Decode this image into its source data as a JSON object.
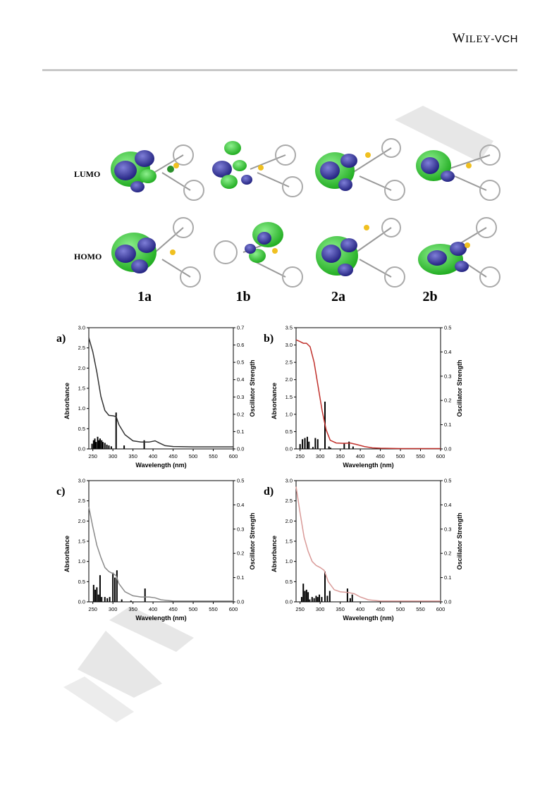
{
  "header": {
    "publisher_first": "W",
    "publisher_rest": "ILEY",
    "publisher_suffix": "-VCH"
  },
  "orbitals": {
    "rows": [
      "LUMO",
      "HOMO"
    ],
    "compounds": [
      "1a",
      "1b",
      "2a",
      "2b"
    ]
  },
  "spectra": [
    {
      "panel_label": "a)",
      "xlabel": "Wavelength (nm)",
      "ylabel_left": "Absorbance",
      "ylabel_right": "Oscillator Strength",
      "xlim": [
        240,
        600
      ],
      "xticks": [
        250,
        300,
        350,
        400,
        450,
        500,
        550,
        600
      ],
      "ylim_left": [
        0,
        3.0
      ],
      "yticks_left": [
        0.0,
        0.5,
        1.0,
        1.5,
        2.0,
        2.5,
        3.0
      ],
      "ylim_right": [
        0,
        0.7
      ],
      "yticks_right": [
        0.0,
        0.1,
        0.2,
        0.3,
        0.4,
        0.5,
        0.6,
        0.7
      ],
      "line_color": "#333333",
      "curve": [
        [
          240,
          2.75
        ],
        [
          250,
          2.4
        ],
        [
          260,
          1.9
        ],
        [
          270,
          1.3
        ],
        [
          280,
          0.95
        ],
        [
          290,
          0.83
        ],
        [
          300,
          0.82
        ],
        [
          308,
          0.8
        ],
        [
          315,
          0.6
        ],
        [
          330,
          0.35
        ],
        [
          350,
          0.2
        ],
        [
          370,
          0.17
        ],
        [
          390,
          0.17
        ],
        [
          405,
          0.2
        ],
        [
          415,
          0.15
        ],
        [
          430,
          0.08
        ],
        [
          450,
          0.06
        ],
        [
          500,
          0.05
        ],
        [
          550,
          0.05
        ],
        [
          600,
          0.05
        ]
      ],
      "sticks": [
        [
          248,
          0.03
        ],
        [
          252,
          0.05
        ],
        [
          255,
          0.06
        ],
        [
          258,
          0.04
        ],
        [
          262,
          0.07
        ],
        [
          265,
          0.05
        ],
        [
          268,
          0.06
        ],
        [
          272,
          0.05
        ],
        [
          275,
          0.04
        ],
        [
          280,
          0.035
        ],
        [
          285,
          0.025
        ],
        [
          290,
          0.02
        ],
        [
          296,
          0.015
        ],
        [
          308,
          0.21
        ],
        [
          328,
          0.02
        ],
        [
          378,
          0.05
        ]
      ]
    },
    {
      "panel_label": "b)",
      "xlabel": "Wavelength (nm)",
      "ylabel_left": "Absorbance",
      "ylabel_right": "Oscillator Strength",
      "xlim": [
        240,
        600
      ],
      "xticks": [
        250,
        300,
        350,
        400,
        450,
        500,
        550,
        600
      ],
      "ylim_left": [
        0,
        3.5
      ],
      "yticks_left": [
        0.0,
        0.5,
        1.0,
        1.5,
        2.0,
        2.5,
        3.0,
        3.5
      ],
      "ylim_right": [
        0,
        0.5
      ],
      "yticks_right": [
        0.0,
        0.1,
        0.2,
        0.3,
        0.4,
        0.5
      ],
      "line_color": "#c0302b",
      "curve": [
        [
          240,
          3.15
        ],
        [
          250,
          3.1
        ],
        [
          258,
          3.05
        ],
        [
          266,
          3.05
        ],
        [
          275,
          2.95
        ],
        [
          285,
          2.5
        ],
        [
          295,
          1.8
        ],
        [
          305,
          1.1
        ],
        [
          315,
          0.55
        ],
        [
          325,
          0.25
        ],
        [
          340,
          0.17
        ],
        [
          360,
          0.16
        ],
        [
          375,
          0.17
        ],
        [
          390,
          0.13
        ],
        [
          410,
          0.07
        ],
        [
          430,
          0.03
        ],
        [
          450,
          0.02
        ],
        [
          500,
          0.01
        ],
        [
          600,
          0.01
        ]
      ],
      "sticks": [
        [
          250,
          0.02
        ],
        [
          256,
          0.04
        ],
        [
          262,
          0.045
        ],
        [
          268,
          0.05
        ],
        [
          272,
          0.03
        ],
        [
          282,
          0.008
        ],
        [
          288,
          0.045
        ],
        [
          294,
          0.04
        ],
        [
          312,
          0.195
        ],
        [
          322,
          0.01
        ],
        [
          326,
          0.005
        ],
        [
          360,
          0.025
        ],
        [
          372,
          0.03
        ],
        [
          382,
          0.01
        ]
      ]
    },
    {
      "panel_label": "c)",
      "xlabel": "Wavelength (nm)",
      "ylabel_left": "Absorbance",
      "ylabel_right": "Oscillator Strength",
      "xlim": [
        240,
        600
      ],
      "xticks": [
        250,
        300,
        350,
        400,
        450,
        500,
        550,
        600
      ],
      "ylim_left": [
        0,
        3.0
      ],
      "yticks_left": [
        0.0,
        0.5,
        1.0,
        1.5,
        2.0,
        2.5,
        3.0
      ],
      "ylim_right": [
        0,
        0.5
      ],
      "yticks_right": [
        0.0,
        0.1,
        0.2,
        0.3,
        0.4,
        0.5
      ],
      "line_color": "#8a8a8a",
      "curve": [
        [
          240,
          2.35
        ],
        [
          250,
          1.85
        ],
        [
          260,
          1.4
        ],
        [
          270,
          1.1
        ],
        [
          280,
          0.85
        ],
        [
          290,
          0.75
        ],
        [
          300,
          0.7
        ],
        [
          308,
          0.65
        ],
        [
          315,
          0.45
        ],
        [
          330,
          0.25
        ],
        [
          350,
          0.15
        ],
        [
          370,
          0.12
        ],
        [
          390,
          0.12
        ],
        [
          405,
          0.1
        ],
        [
          420,
          0.05
        ],
        [
          450,
          0.02
        ],
        [
          600,
          0.02
        ]
      ],
      "sticks": [
        [
          252,
          0.07
        ],
        [
          256,
          0.05
        ],
        [
          260,
          0.06
        ],
        [
          264,
          0.03
        ],
        [
          268,
          0.11
        ],
        [
          272,
          0.02
        ],
        [
          280,
          0.02
        ],
        [
          286,
          0.015
        ],
        [
          292,
          0.02
        ],
        [
          300,
          0.12
        ],
        [
          305,
          0.1
        ],
        [
          310,
          0.13
        ],
        [
          322,
          0.01
        ],
        [
          345,
          0.005
        ],
        [
          380,
          0.055
        ]
      ]
    },
    {
      "panel_label": "d)",
      "xlabel": "Wavelength (nm)",
      "ylabel_left": "Absorbance",
      "ylabel_right": "Oscillator Strength",
      "xlim": [
        240,
        600
      ],
      "xticks": [
        250,
        300,
        350,
        400,
        450,
        500,
        550,
        600
      ],
      "ylim_left": [
        0,
        3.0
      ],
      "yticks_left": [
        0.0,
        0.5,
        1.0,
        1.5,
        2.0,
        2.5,
        3.0
      ],
      "ylim_right": [
        0,
        0.5
      ],
      "yticks_right": [
        0.0,
        0.1,
        0.2,
        0.3,
        0.4,
        0.5
      ],
      "line_color": "#d99a98",
      "curve": [
        [
          240,
          2.85
        ],
        [
          250,
          2.2
        ],
        [
          260,
          1.6
        ],
        [
          270,
          1.25
        ],
        [
          280,
          1.0
        ],
        [
          290,
          0.9
        ],
        [
          300,
          0.85
        ],
        [
          310,
          0.78
        ],
        [
          320,
          0.5
        ],
        [
          335,
          0.3
        ],
        [
          350,
          0.25
        ],
        [
          370,
          0.23
        ],
        [
          385,
          0.2
        ],
        [
          400,
          0.12
        ],
        [
          420,
          0.05
        ],
        [
          450,
          0.02
        ],
        [
          600,
          0.02
        ]
      ],
      "sticks": [
        [
          254,
          0.02
        ],
        [
          258,
          0.075
        ],
        [
          262,
          0.045
        ],
        [
          266,
          0.05
        ],
        [
          270,
          0.04
        ],
        [
          274,
          0.01
        ],
        [
          280,
          0.02
        ],
        [
          285,
          0.015
        ],
        [
          290,
          0.025
        ],
        [
          294,
          0.02
        ],
        [
          298,
          0.03
        ],
        [
          304,
          0.02
        ],
        [
          312,
          0.125
        ],
        [
          318,
          0.025
        ],
        [
          324,
          0.045
        ],
        [
          368,
          0.055
        ],
        [
          375,
          0.015
        ],
        [
          380,
          0.03
        ]
      ]
    }
  ]
}
